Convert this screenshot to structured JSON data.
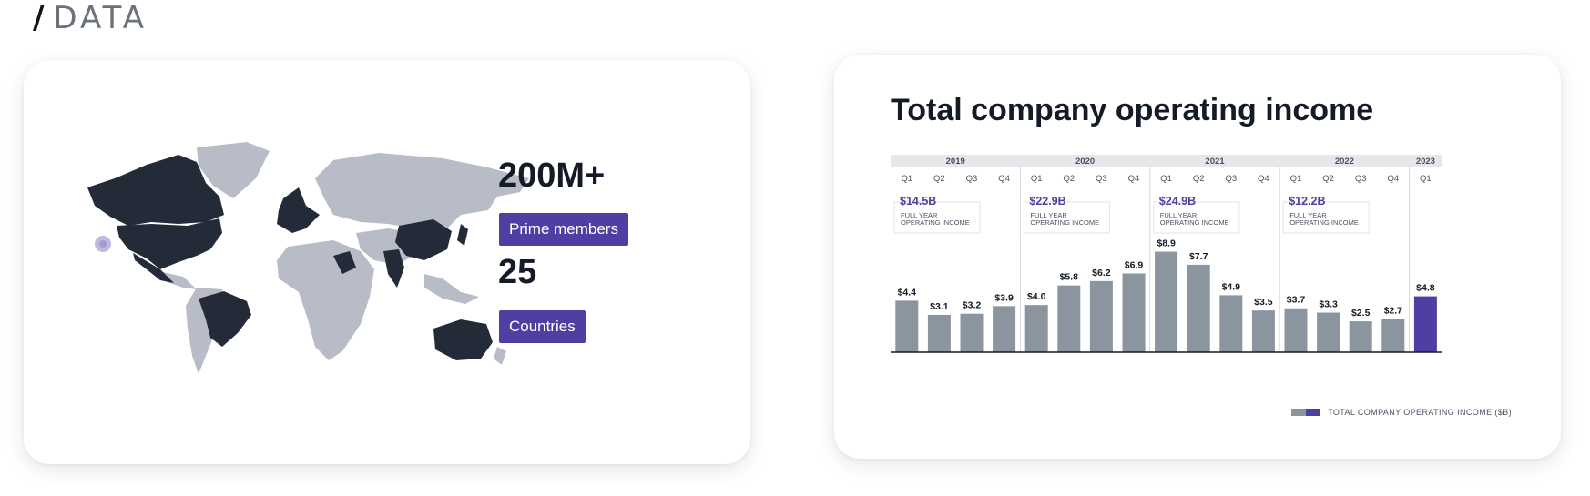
{
  "section": {
    "slash": "/",
    "label": "DATA"
  },
  "map_card": {
    "stats": [
      {
        "value": "200M+",
        "label": "Prime members"
      },
      {
        "value": "25",
        "label": "Countries"
      }
    ]
  },
  "chart_card": {
    "title": "Total company operating income",
    "legend_label": "TOTAL COMPANY OPERATING INCOME ($B)"
  },
  "colors": {
    "bar": "#8b95a0",
    "highlight": "#503fa3",
    "dark": "#232a38",
    "land": "#b7bcc6"
  },
  "chart_data": {
    "type": "bar",
    "title": "Total company operating income",
    "ylabel": "TOTAL COMPANY OPERATING INCOME ($B)",
    "ylim": [
      0,
      10
    ],
    "years": [
      {
        "year": "2019",
        "quarters": [
          "Q1",
          "Q2",
          "Q3",
          "Q4"
        ],
        "values": [
          4.4,
          3.1,
          3.2,
          3.9
        ],
        "labels": [
          "$4.4",
          "$3.1",
          "$3.2",
          "$3.9"
        ],
        "full_year": "$14.5B",
        "full_year_note": "FULL YEAR OPERATING INCOME"
      },
      {
        "year": "2020",
        "quarters": [
          "Q1",
          "Q2",
          "Q3",
          "Q4"
        ],
        "values": [
          4.0,
          5.8,
          6.2,
          6.9
        ],
        "labels": [
          "$4.0",
          "$5.8",
          "$6.2",
          "$6.9"
        ],
        "full_year": "$22.9B",
        "full_year_note": "FULL YEAR OPERATING INCOME"
      },
      {
        "year": "2021",
        "quarters": [
          "Q1",
          "Q2",
          "Q3",
          "Q4"
        ],
        "values": [
          8.9,
          7.7,
          4.9,
          3.5
        ],
        "labels": [
          "$8.9",
          "$7.7",
          "$4.9",
          "$3.5"
        ],
        "full_year": "$24.9B",
        "full_year_note": "FULL YEAR OPERATING INCOME"
      },
      {
        "year": "2022",
        "quarters": [
          "Q1",
          "Q2",
          "Q3",
          "Q4"
        ],
        "values": [
          3.7,
          3.3,
          2.5,
          2.7
        ],
        "labels": [
          "$3.7",
          "$3.3",
          "$2.5",
          "$2.7"
        ],
        "full_year": "$12.2B",
        "full_year_note": "FULL YEAR OPERATING INCOME"
      },
      {
        "year": "2023",
        "quarters": [
          "Q1"
        ],
        "values": [
          4.8
        ],
        "labels": [
          "$4.8"
        ],
        "full_year": "",
        "full_year_note": ""
      }
    ],
    "highlight_last": true
  }
}
